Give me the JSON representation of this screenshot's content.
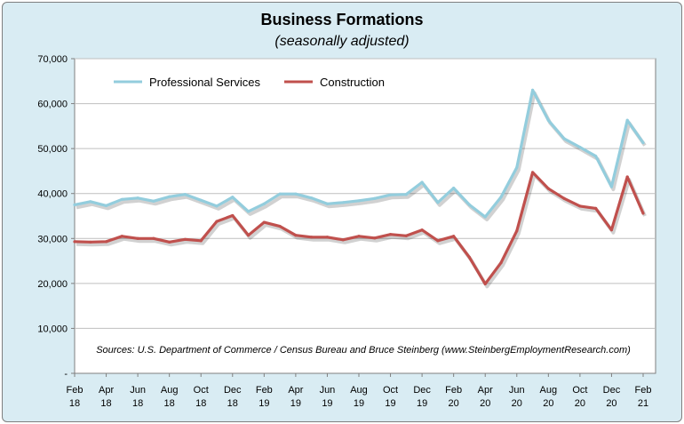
{
  "chart_data": {
    "type": "line",
    "title": "Business Formations",
    "subtitle": "(seasonally adjusted)",
    "xlabel": "",
    "ylabel": "",
    "ylim": [
      0,
      70000
    ],
    "y_ticks": [
      "-",
      "10,000",
      "20,000",
      "30,000",
      "40,000",
      "50,000",
      "60,000",
      "70,000"
    ],
    "x_tick_labels": [
      {
        "month": "Feb",
        "year": "18"
      },
      {
        "month": "Apr",
        "year": "18"
      },
      {
        "month": "Jun",
        "year": "18"
      },
      {
        "month": "Aug",
        "year": "18"
      },
      {
        "month": "Oct",
        "year": "18"
      },
      {
        "month": "Dec",
        "year": "18"
      },
      {
        "month": "Feb",
        "year": "19"
      },
      {
        "month": "Apr",
        "year": "19"
      },
      {
        "month": "Jun",
        "year": "19"
      },
      {
        "month": "Aug",
        "year": "19"
      },
      {
        "month": "Oct",
        "year": "19"
      },
      {
        "month": "Dec",
        "year": "19"
      },
      {
        "month": "Feb",
        "year": "20"
      },
      {
        "month": "Apr",
        "year": "20"
      },
      {
        "month": "Jun",
        "year": "20"
      },
      {
        "month": "Aug",
        "year": "20"
      },
      {
        "month": "Oct",
        "year": "20"
      },
      {
        "month": "Dec",
        "year": "20"
      },
      {
        "month": "Feb",
        "year": "21"
      }
    ],
    "months": [
      "Feb 18",
      "Mar 18",
      "Apr 18",
      "May 18",
      "Jun 18",
      "Jul 18",
      "Aug 18",
      "Sep 18",
      "Oct 18",
      "Nov 18",
      "Dec 18",
      "Jan 19",
      "Feb 19",
      "Mar 19",
      "Apr 19",
      "May 19",
      "Jun 19",
      "Jul 19",
      "Aug 19",
      "Sep 19",
      "Oct 19",
      "Nov 19",
      "Dec 19",
      "Jan 20",
      "Feb 20",
      "Mar 20",
      "Apr 20",
      "May 20",
      "Jun 20",
      "Jul 20",
      "Aug 20",
      "Sep 20",
      "Oct 20",
      "Nov 20",
      "Dec 20",
      "Jan 21",
      "Feb 21"
    ],
    "series": [
      {
        "name": "Professional Services",
        "color": "#93cddd",
        "values": [
          37500,
          38200,
          37300,
          38700,
          39000,
          38300,
          39300,
          39800,
          38500,
          37200,
          39200,
          36000,
          37700,
          39900,
          39900,
          39000,
          37700,
          38000,
          38400,
          38900,
          39700,
          39800,
          42500,
          38000,
          41200,
          37500,
          34800,
          39200,
          45800,
          63000,
          56300,
          52200,
          50300,
          48300,
          41500,
          56300,
          51300
        ]
      },
      {
        "name": "Construction",
        "color": "#c0504d",
        "values": [
          29300,
          29200,
          29300,
          30500,
          30000,
          30000,
          29200,
          29800,
          29500,
          33800,
          35100,
          30700,
          33600,
          32700,
          30700,
          30300,
          30300,
          29700,
          30500,
          30100,
          30900,
          30600,
          31900,
          29500,
          30500,
          25800,
          19900,
          24600,
          31700,
          44700,
          41100,
          38900,
          37200,
          36700,
          31900,
          43700,
          35600
        ]
      }
    ],
    "legend_position": "top-left",
    "grid": true,
    "annotation": "Sources: U.S. Department of Commerce / Census Bureau and Bruce Steinberg (www.SteinbergEmploymentResearch.com)"
  }
}
